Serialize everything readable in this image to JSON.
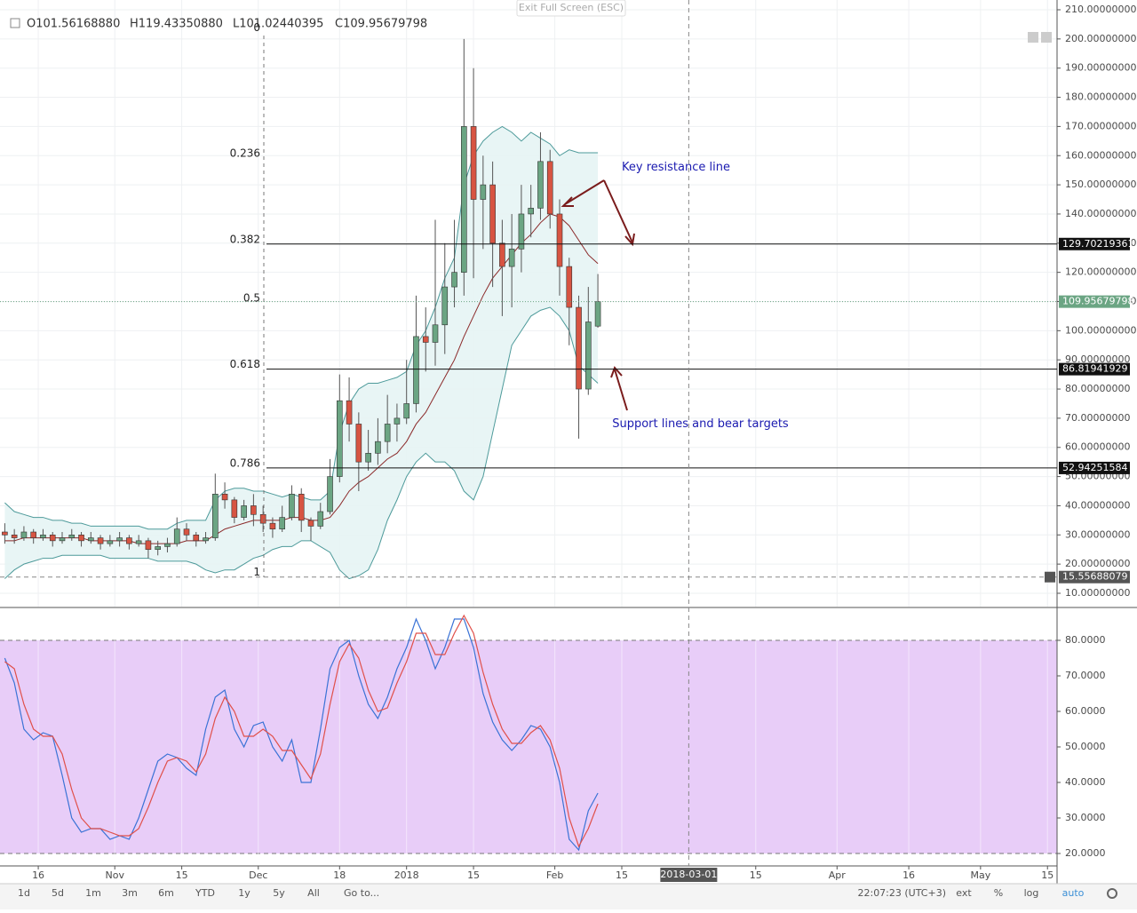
{
  "exit_button": "Exit Full Screen (ESC)",
  "header": [
    "O101.56168880",
    "H119.43350880",
    "L101.02440395",
    "C109.95679798"
  ],
  "toolbar": {
    "ranges": [
      "1d",
      "5d",
      "1m",
      "3m",
      "6m",
      "YTD",
      "1y",
      "5y",
      "All"
    ],
    "goto": "Go to...",
    "clock": "22:07:23 (UTC+3)",
    "options": [
      "ext",
      "%",
      "log",
      "auto"
    ]
  },
  "chart_data": {
    "type": "candlestick",
    "x": [
      "2017-10-09",
      "2017-10-11",
      "2017-10-13",
      "2017-10-15",
      "2017-10-17",
      "2017-10-19",
      "2017-10-21",
      "2017-10-23",
      "2017-10-25",
      "2017-10-27",
      "2017-10-29",
      "2017-10-31",
      "2017-11-02",
      "2017-11-04",
      "2017-11-06",
      "2017-11-08",
      "2017-11-10",
      "2017-11-12",
      "2017-11-14",
      "2017-11-16",
      "2017-11-18",
      "2017-11-20",
      "2017-11-22",
      "2017-11-24",
      "2017-11-26",
      "2017-11-28",
      "2017-11-30",
      "2017-12-02",
      "2017-12-04",
      "2017-12-06",
      "2017-12-08",
      "2017-12-10",
      "2017-12-12",
      "2017-12-14",
      "2017-12-16",
      "2017-12-18",
      "2017-12-20",
      "2017-12-22",
      "2017-12-24",
      "2017-12-26",
      "2017-12-28",
      "2017-12-30",
      "2018-01-01",
      "2018-01-03",
      "2018-01-05",
      "2018-01-07",
      "2018-01-09",
      "2018-01-11",
      "2018-01-13",
      "2018-01-15",
      "2018-01-17",
      "2018-01-19",
      "2018-01-21",
      "2018-01-23",
      "2018-01-25",
      "2018-01-27",
      "2018-01-29",
      "2018-01-31",
      "2018-02-02",
      "2018-02-04",
      "2018-02-06",
      "2018-02-08",
      "2018-02-10"
    ],
    "candles": {
      "up_color": "#6ba583",
      "down_color": "#d75442",
      "open": [
        31,
        30,
        29,
        31,
        29,
        30,
        28,
        29,
        30,
        28,
        29,
        27,
        28,
        29,
        27,
        28,
        25,
        26,
        27,
        32,
        30,
        28,
        29,
        44,
        42,
        36,
        40,
        37,
        34,
        32,
        36,
        44,
        35,
        33,
        38,
        50,
        76,
        68,
        55,
        58,
        62,
        68,
        70,
        75,
        98,
        96,
        102,
        115,
        120,
        170,
        145,
        150,
        130,
        122,
        128,
        140,
        142,
        158,
        140,
        122,
        108,
        80,
        101.5616888
      ],
      "high": [
        34,
        32,
        33,
        32,
        32,
        31,
        31,
        32,
        31,
        31,
        30,
        30,
        31,
        30,
        30,
        29,
        28,
        29,
        36,
        34,
        31,
        31,
        51,
        48,
        43,
        42,
        44,
        40,
        36,
        40,
        47,
        46,
        36,
        41,
        56,
        85,
        84,
        72,
        66,
        70,
        78,
        75,
        90,
        112,
        108,
        138,
        130,
        138,
        200,
        190,
        160,
        158,
        138,
        140,
        150,
        150,
        168,
        162,
        145,
        125,
        112,
        115,
        119.4335088
      ],
      "low": [
        27,
        27,
        28,
        27,
        28,
        26,
        27,
        28,
        26,
        27,
        25,
        26,
        26,
        25,
        26,
        22,
        23,
        24,
        26,
        28,
        26,
        27,
        28,
        39,
        34,
        35,
        33,
        31,
        29,
        31,
        35,
        31,
        28,
        32,
        37,
        48,
        62,
        45,
        52,
        54,
        58,
        62,
        68,
        72,
        86,
        88,
        92,
        108,
        112,
        118,
        128,
        115,
        105,
        108,
        120,
        132,
        138,
        135,
        112,
        95,
        63,
        78,
        101.02440395
      ],
      "close": [
        30,
        29,
        31,
        29,
        30,
        28,
        29,
        30,
        28,
        29,
        27,
        28,
        29,
        27,
        28,
        25,
        26,
        27,
        32,
        30,
        28,
        29,
        44,
        42,
        36,
        40,
        37,
        34,
        32,
        36,
        44,
        35,
        33,
        38,
        50,
        76,
        68,
        55,
        58,
        62,
        68,
        70,
        75,
        98,
        96,
        102,
        115,
        120,
        170,
        145,
        150,
        130,
        122,
        128,
        140,
        142,
        158,
        140,
        122,
        108,
        80,
        103,
        109.95679798
      ]
    },
    "bands": {
      "fill": "#e6f4f4",
      "upper": {
        "color": "#4d9a9a",
        "values": [
          41,
          38,
          37,
          36,
          36,
          35,
          35,
          34,
          34,
          33,
          33,
          33,
          33,
          33,
          33,
          32,
          32,
          32,
          34,
          35,
          35,
          35,
          42,
          45,
          46,
          46,
          45,
          45,
          44,
          43,
          44,
          43,
          42,
          42,
          45,
          65,
          75,
          80,
          82,
          82,
          83,
          84,
          86,
          95,
          100,
          108,
          118,
          125,
          150,
          160,
          165,
          168,
          170,
          168,
          165,
          168,
          166,
          164,
          160,
          162,
          161,
          161,
          161
        ]
      },
      "lower": {
        "color": "#4d9a9a",
        "values": [
          15,
          18,
          20,
          21,
          22,
          22,
          23,
          23,
          23,
          23,
          23,
          22,
          22,
          22,
          22,
          22,
          21,
          21,
          21,
          21,
          20,
          18,
          17,
          18,
          18,
          20,
          22,
          23,
          25,
          26,
          26,
          28,
          28,
          26,
          24,
          18,
          15,
          16,
          18,
          25,
          35,
          42,
          50,
          55,
          58,
          55,
          55,
          52,
          45,
          42,
          50,
          65,
          80,
          95,
          100,
          105,
          107,
          108,
          105,
          100,
          88,
          85,
          82
        ]
      },
      "basis": {
        "color": "#8b2a2a",
        "values": [
          28,
          28,
          29,
          29,
          29,
          29,
          29,
          29,
          29,
          28,
          28,
          28,
          28,
          28,
          27,
          27,
          27,
          27,
          27,
          28,
          28,
          28,
          30,
          32,
          33,
          34,
          35,
          35,
          35,
          35,
          36,
          36,
          35,
          35,
          36,
          40,
          45,
          48,
          50,
          53,
          56,
          58,
          62,
          68,
          72,
          78,
          84,
          90,
          98,
          105,
          112,
          118,
          122,
          126,
          130,
          133,
          137,
          140,
          139,
          136,
          131,
          126,
          123
        ]
      }
    },
    "fib": [
      {
        "ratio": 0,
        "price": 202.3
      },
      {
        "ratio": 0.236,
        "price": 159.2
      },
      {
        "ratio": 0.382,
        "price": 129.70219361,
        "line": true
      },
      {
        "ratio": 0.5,
        "price": 109.5
      },
      {
        "ratio": 0.618,
        "price": 86.81941929,
        "line": true
      },
      {
        "ratio": 0.786,
        "price": 52.94251584,
        "line": true
      },
      {
        "ratio": 1,
        "price": 15.55688079,
        "dashed": true
      }
    ],
    "annotations": [
      {
        "text": "Key resistance line",
        "price": 156,
        "date": "2018-02-15"
      },
      {
        "text": "Support lines and bear targets",
        "price": 68,
        "date": "2018-02-13"
      }
    ],
    "crosshair": {
      "date": "2018-03-01"
    },
    "xlim": [
      "2017-10-08",
      "2018-05-17"
    ],
    "xticks": [
      {
        "value": "2017-10-16",
        "label": "16"
      },
      {
        "value": "2017-11-01",
        "label": "Nov"
      },
      {
        "value": "2017-11-15",
        "label": "15"
      },
      {
        "value": "2017-12-01",
        "label": "Dec"
      },
      {
        "value": "2017-12-18",
        "label": "18"
      },
      {
        "value": "2018-01-01",
        "label": "2018"
      },
      {
        "value": "2018-01-15",
        "label": "15"
      },
      {
        "value": "2018-02-01",
        "label": "Feb"
      },
      {
        "value": "2018-02-15",
        "label": "15"
      },
      {
        "value": "2018-03-15",
        "label": "15"
      },
      {
        "value": "2018-04-01",
        "label": "Apr"
      },
      {
        "value": "2018-04-16",
        "label": "16"
      },
      {
        "value": "2018-05-01",
        "label": "May"
      },
      {
        "value": "2018-05-15",
        "label": "15"
      }
    ],
    "ylim": [
      5.43,
      213.35
    ],
    "yticks": [
      {
        "value": 10,
        "label": "10.00000000"
      },
      {
        "value": 20,
        "label": "20.00000000"
      },
      {
        "value": 30,
        "label": "30.00000000"
      },
      {
        "value": 40,
        "label": "40.00000000"
      },
      {
        "value": 50,
        "label": "50.00000000"
      },
      {
        "value": 60,
        "label": "60.00000000"
      },
      {
        "value": 70,
        "label": "70.00000000"
      },
      {
        "value": 80,
        "label": "80.00000000"
      },
      {
        "value": 90,
        "label": "90.00000000"
      },
      {
        "value": 100,
        "label": "100.00000000"
      },
      {
        "value": 110,
        "label": "110.00000000"
      },
      {
        "value": 120,
        "label": "120.00000000"
      },
      {
        "value": 130,
        "label": "130.00000000"
      },
      {
        "value": 140,
        "label": "140.00000000"
      },
      {
        "value": 150,
        "label": "150.00000000"
      },
      {
        "value": 160,
        "label": "160.00000000"
      },
      {
        "value": 170,
        "label": "170.00000000"
      },
      {
        "value": 180,
        "label": "180.00000000"
      },
      {
        "value": 190,
        "label": "190.00000000"
      },
      {
        "value": 200,
        "label": "200.00000000"
      },
      {
        "value": 210,
        "label": "210.00000000"
      }
    ],
    "y2lim": [
      16.5,
      88.75
    ],
    "y2ticks": [
      {
        "value": 20,
        "label": "20.0000"
      },
      {
        "value": 30,
        "label": "30.0000"
      },
      {
        "value": 40,
        "label": "40.0000"
      },
      {
        "value": 50,
        "label": "50.0000"
      },
      {
        "value": 60,
        "label": "60.0000"
      },
      {
        "value": 70,
        "label": "70.0000"
      },
      {
        "value": 80,
        "label": "80.0000"
      }
    ],
    "y2band": {
      "range": [
        20,
        80
      ],
      "color": "#e8cdf8"
    },
    "series": [
      {
        "color": "#3b73d6",
        "axis": "y2",
        "values": [
          75,
          68,
          55,
          52,
          54,
          53,
          42,
          30,
          26,
          27,
          27,
          24,
          25,
          24,
          30,
          38,
          46,
          48,
          47,
          44,
          42,
          55,
          64,
          66,
          55,
          50,
          56,
          57,
          50,
          46,
          52,
          40,
          40,
          55,
          72,
          78,
          80,
          70,
          62,
          58,
          64,
          72,
          78,
          86,
          80,
          72,
          78,
          86,
          86,
          78,
          65,
          57,
          52,
          49,
          52,
          56,
          55,
          50,
          40,
          24,
          21,
          32,
          37
        ]
      },
      {
        "color": "#e0504a",
        "axis": "y2",
        "values": [
          74,
          72,
          62,
          55,
          53,
          53,
          48,
          38,
          30,
          27,
          27,
          26,
          25,
          25,
          27,
          33,
          40,
          46,
          47,
          46,
          43,
          48,
          58,
          64,
          60,
          53,
          53,
          55,
          53,
          49,
          49,
          45,
          41,
          48,
          62,
          74,
          79,
          75,
          66,
          60,
          61,
          68,
          74,
          82,
          82,
          76,
          76,
          82,
          87,
          82,
          71,
          62,
          55,
          51,
          51,
          54,
          56,
          52,
          44,
          30,
          22,
          27,
          34
        ]
      }
    ],
    "grid": true
  }
}
